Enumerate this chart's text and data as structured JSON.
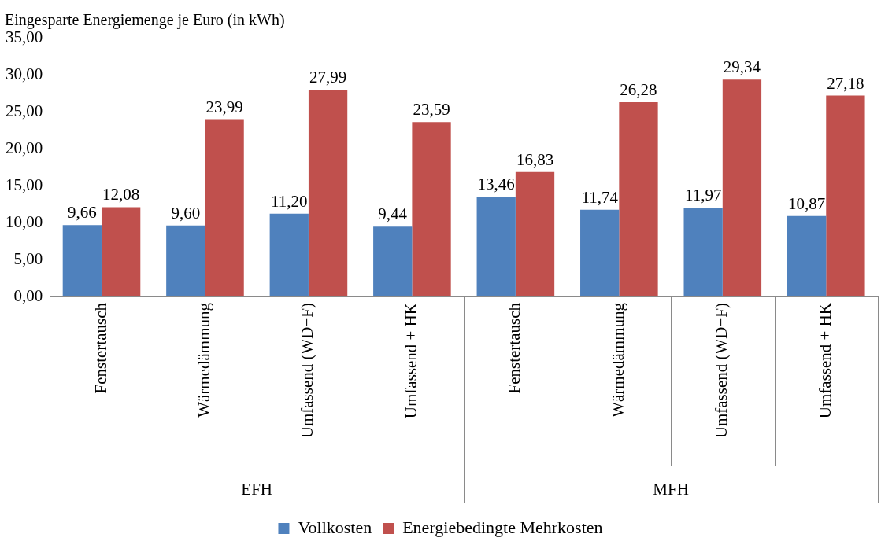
{
  "chart_data": {
    "type": "bar",
    "ylabel": "Eingesparte Energiemenge je Euro (in kWh)",
    "categories": [
      "Fenstertausch",
      "Wärmedämmung",
      "Umfassend (WD+F)",
      "Umfassend + HK",
      "Fenstertausch",
      "Wärmedämmung",
      "Umfassend (WD+F)",
      "Umfassend + HK"
    ],
    "annotations": [
      "EFH",
      "MFH"
    ],
    "series": [
      {
        "name": "Vollkosten",
        "color": "#4f81bd",
        "values": [
          9.66,
          9.6,
          11.2,
          9.44,
          13.46,
          11.74,
          11.97,
          10.87
        ],
        "value_labels": [
          "9,66",
          "9,60",
          "11,20",
          "9,44",
          "13,46",
          "11,74",
          "11,97",
          "10,87"
        ]
      },
      {
        "name": "Energiebedingte Mehrkosten",
        "color": "#c0504d",
        "values": [
          12.08,
          23.99,
          27.99,
          23.59,
          16.83,
          26.28,
          29.34,
          27.18
        ],
        "value_labels": [
          "12,08",
          "23,99",
          "27,99",
          "23,59",
          "16,83",
          "26,28",
          "29,34",
          "27,18"
        ]
      }
    ],
    "ylim": [
      0,
      35
    ],
    "yticks": [
      {
        "value": 0,
        "label": "0,00"
      },
      {
        "value": 5,
        "label": "5,00"
      },
      {
        "value": 10,
        "label": "10,00"
      },
      {
        "value": 15,
        "label": "15,00"
      },
      {
        "value": 20,
        "label": "20,00"
      },
      {
        "value": 25,
        "label": "25,00"
      },
      {
        "value": 30,
        "label": "30,00"
      },
      {
        "value": 35,
        "label": "35,00"
      }
    ],
    "grid": false,
    "legend": "bottom"
  }
}
